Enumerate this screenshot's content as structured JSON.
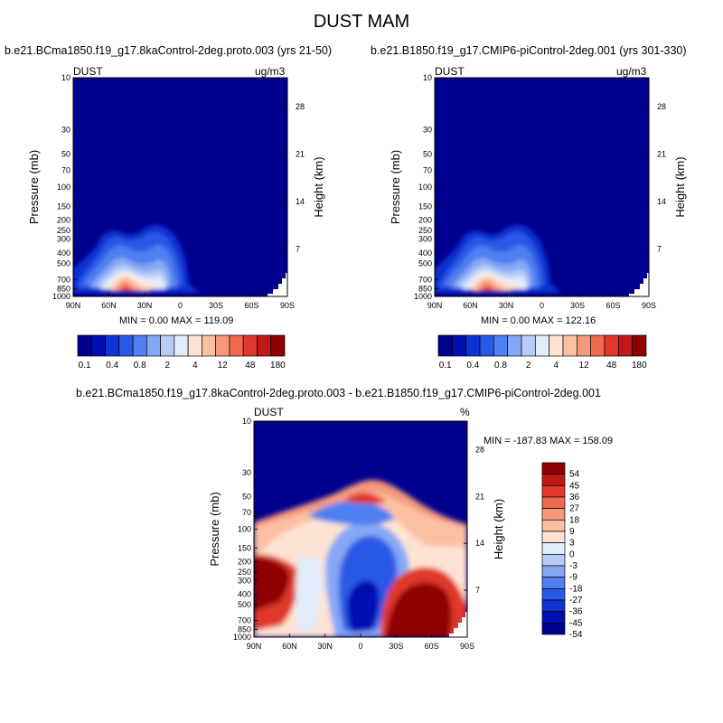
{
  "figure_title": "DUST MAM",
  "colors": {
    "seq_levels": [
      "#00008f",
      "#0010b0",
      "#0f33d2",
      "#2a58e6",
      "#4f7ff0",
      "#86a8f4",
      "#b8ccf8",
      "#e3ecfb",
      "#fee3d3",
      "#fbc0a4",
      "#f6987a",
      "#ef6a50",
      "#e0392c",
      "#c01717",
      "#8f0000"
    ],
    "diff_levels": [
      "#00008f",
      "#0010b0",
      "#0f33d2",
      "#2a58e6",
      "#4f7ff0",
      "#86a8f4",
      "#b8ccf8",
      "#e3ecfb",
      "#fee3d3",
      "#fbc0a4",
      "#f6987a",
      "#ef6a50",
      "#e0392c",
      "#c01717",
      "#8f0000"
    ],
    "background_field": "#00008f"
  },
  "panels": {
    "left": {
      "title": "b.e21.BCma1850.f19_g17.8kaControl-2deg.proto.003 (yrs 21-50)",
      "field": "DUST",
      "units": "ug/m3",
      "minmax": "MIN =   0.00  MAX = 119.09"
    },
    "right": {
      "title": "b.e21.B1850.f19_g17.CMIP6-piControl-2deg.001 (yrs 301-330)",
      "field": "DUST",
      "units": "ug/m3",
      "minmax": "MIN =   0.00  MAX = 122.16"
    },
    "diff": {
      "title": "b.e21.BCma1850.f19_g17.8kaControl-2deg.proto.003 - b.e21.B1850.f19_g17.CMIP6-piControl-2deg.001",
      "field": "DUST",
      "units": "%",
      "minmax": "MIN = -187.83  MAX = 158.09"
    }
  },
  "axes": {
    "ylabel": "Pressure (mb)",
    "y2label": "Height (km)",
    "pressure_ticks": [
      "10",
      "30",
      "50",
      "70",
      "100",
      "150",
      "200",
      "250",
      "300",
      "400",
      "500",
      "700",
      "850",
      "1000"
    ],
    "height_ticks": [
      "28",
      "21",
      "14",
      "7"
    ],
    "lat_ticks": [
      "90N",
      "60N",
      "30N",
      "0",
      "30S",
      "60S",
      "90S"
    ]
  },
  "colorbar_seq": {
    "labels": [
      "0.1",
      "0.4",
      "0.8",
      "2",
      "4",
      "12",
      "48",
      "180"
    ]
  },
  "colorbar_diff": {
    "labels": [
      "54",
      "45",
      "36",
      "27",
      "18",
      "9",
      "3",
      "0",
      "-3",
      "-9",
      "-18",
      "-27",
      "-36",
      "-45",
      "-54"
    ]
  },
  "chart_data": [
    {
      "type": "heatmap",
      "title": "b.e21.BCma1850.f19_g17.8kaControl-2deg.proto.003 (yrs 21-50)",
      "field": "DUST",
      "units": "ug/m3",
      "xlabel": "",
      "ylabel": "Pressure (mb)",
      "y2label": "Height (km)",
      "xlim": [
        "90N",
        "90S"
      ],
      "ylim": [
        1000,
        10
      ],
      "yscale": "log",
      "min": 0.0,
      "max": 119.09,
      "levels": [
        0.1,
        0.2,
        0.4,
        0.6,
        0.8,
        1,
        2,
        3,
        4,
        8,
        12,
        24,
        48,
        96,
        180
      ],
      "dust_maximum_location": {
        "lat_deg": 35,
        "pressure_mb": 750
      }
    },
    {
      "type": "heatmap",
      "title": "b.e21.B1850.f19_g17.CMIP6-piControl-2deg.001 (yrs 301-330)",
      "field": "DUST",
      "units": "ug/m3",
      "xlabel": "",
      "ylabel": "Pressure (mb)",
      "y2label": "Height (km)",
      "xlim": [
        "90N",
        "90S"
      ],
      "ylim": [
        1000,
        10
      ],
      "yscale": "log",
      "min": 0.0,
      "max": 122.16,
      "levels": [
        0.1,
        0.2,
        0.4,
        0.6,
        0.8,
        1,
        2,
        3,
        4,
        8,
        12,
        24,
        48,
        96,
        180
      ],
      "dust_maximum_location": {
        "lat_deg": 35,
        "pressure_mb": 750
      }
    },
    {
      "type": "heatmap",
      "title": "b.e21.BCma1850.f19_g17.8kaControl-2deg.proto.003 - b.e21.B1850.f19_g17.CMIP6-piControl-2deg.001",
      "field": "DUST",
      "units": "%",
      "xlabel": "",
      "ylabel": "Pressure (mb)",
      "y2label": "Height (km)",
      "xlim": [
        "90N",
        "90S"
      ],
      "ylim": [
        1000,
        10
      ],
      "yscale": "log",
      "min": -187.83,
      "max": 158.09,
      "levels": [
        -54,
        -45,
        -36,
        -27,
        -18,
        -9,
        -3,
        0,
        3,
        9,
        18,
        27,
        36,
        45,
        54
      ]
    }
  ]
}
